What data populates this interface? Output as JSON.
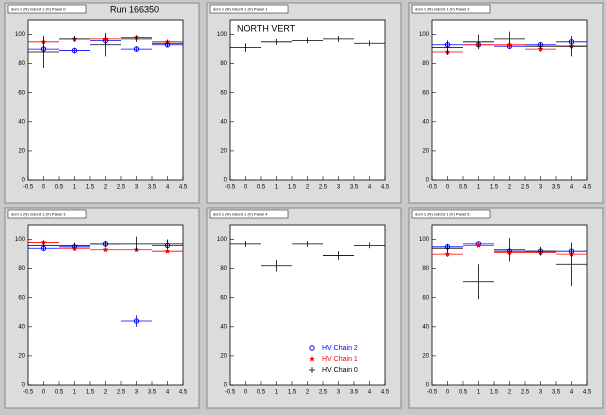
{
  "chart_data": [
    {
      "type": "errorbar",
      "title": "dom 1 (N) Gdord 1 (V) Panel 0",
      "run_label": "Run 166350",
      "x": [
        0,
        1,
        2,
        3,
        4
      ],
      "xerr": 0.5,
      "xlim": [
        -0.5,
        4.5
      ],
      "xticks": [
        -0.5,
        0,
        0.5,
        1,
        1.5,
        2,
        2.5,
        3,
        3.5,
        4,
        4.5
      ],
      "ylim": [
        0,
        110
      ],
      "yticks": [
        0,
        20,
        40,
        60,
        80,
        100
      ],
      "series": [
        {
          "color": "#0000ff",
          "marker": "circle",
          "values": [
            90,
            89,
            96,
            90,
            93
          ],
          "errors": [
            2,
            2,
            3,
            2,
            2
          ]
        },
        {
          "color": "#ff0000",
          "marker": "star",
          "values": [
            95,
            97,
            97,
            98,
            95
          ],
          "errors": [
            2,
            1,
            1,
            1,
            1
          ]
        },
        {
          "color": "#000000",
          "marker": "cross",
          "values": [
            88,
            97,
            93,
            97,
            94
          ],
          "errors": [
            11,
            2,
            8,
            2,
            2
          ]
        }
      ]
    },
    {
      "type": "errorbar",
      "title": "dom 1 (N) Gdord 1 (V) Panel 1",
      "annotation": "NORTH VERT",
      "x": [
        0,
        1,
        2,
        3,
        4
      ],
      "xerr": 0.5,
      "xlim": [
        -0.5,
        4.5
      ],
      "xticks": [
        -0.5,
        0,
        0.5,
        1,
        1.5,
        2,
        2.5,
        3,
        3.5,
        4,
        4.5
      ],
      "ylim": [
        0,
        110
      ],
      "yticks": [
        0,
        20,
        40,
        60,
        80,
        100
      ],
      "series": [
        {
          "color": "#000000",
          "marker": "cross",
          "values": [
            91,
            95,
            96,
            97,
            94
          ],
          "errors": [
            3,
            2,
            2,
            2,
            2
          ]
        }
      ]
    },
    {
      "type": "errorbar",
      "title": "dom 1 (N) Gdord 1 (V) Panel 2",
      "x": [
        0,
        1,
        2,
        3,
        4
      ],
      "xerr": 0.5,
      "xlim": [
        -0.5,
        4.5
      ],
      "xticks": [
        -0.5,
        0,
        0.5,
        1,
        1.5,
        2,
        2.5,
        3,
        3.5,
        4,
        4.5
      ],
      "ylim": [
        0,
        110
      ],
      "yticks": [
        0,
        20,
        40,
        60,
        80,
        100
      ],
      "series": [
        {
          "color": "#0000ff",
          "marker": "circle",
          "values": [
            93,
            93,
            92,
            93,
            95
          ],
          "errors": [
            2,
            2,
            2,
            2,
            2
          ]
        },
        {
          "color": "#ff0000",
          "marker": "star",
          "values": [
            88,
            93,
            93,
            90,
            92
          ],
          "errors": [
            2,
            2,
            2,
            2,
            2
          ]
        },
        {
          "color": "#000000",
          "marker": "cross",
          "values": [
            91,
            95,
            97,
            92,
            92
          ],
          "errors": [
            5,
            5,
            5,
            2,
            7
          ]
        }
      ]
    },
    {
      "type": "errorbar",
      "title": "dom 1 (N) Gdord 1 (V) Panel 3",
      "x": [
        0,
        1,
        2,
        3,
        4
      ],
      "xerr": 0.5,
      "xlim": [
        -0.5,
        4.5
      ],
      "xticks": [
        -0.5,
        0,
        0.5,
        1,
        1.5,
        2,
        2.5,
        3,
        3.5,
        4,
        4.5
      ],
      "ylim": [
        0,
        110
      ],
      "yticks": [
        0,
        20,
        40,
        60,
        80,
        100
      ],
      "series": [
        {
          "color": "#0000ff",
          "marker": "circle",
          "values": [
            94,
            95,
            97,
            44,
            96
          ],
          "errors": [
            2,
            2,
            2,
            4,
            3
          ]
        },
        {
          "color": "#ff0000",
          "marker": "star",
          "values": [
            98,
            94,
            93,
            93,
            92
          ],
          "errors": [
            1,
            2,
            1,
            1,
            1
          ]
        },
        {
          "color": "#000000",
          "marker": "cross",
          "values": [
            96,
            96,
            97,
            97,
            97
          ],
          "errors": [
            2,
            2,
            2,
            5,
            3
          ]
        }
      ]
    },
    {
      "type": "errorbar",
      "title": "dom 1 (N) Gdord 1 (V) Panel 4",
      "x": [
        0,
        1,
        2,
        3,
        4
      ],
      "xerr": 0.5,
      "xlim": [
        -0.5,
        4.5
      ],
      "xticks": [
        -0.5,
        0,
        0.5,
        1,
        1.5,
        2,
        2.5,
        3,
        3.5,
        4,
        4.5
      ],
      "ylim": [
        0,
        110
      ],
      "yticks": [
        0,
        20,
        40,
        60,
        80,
        100
      ],
      "series": [
        {
          "color": "#000000",
          "marker": "cross",
          "values": [
            97,
            82,
            97,
            89,
            96
          ],
          "errors": [
            2,
            4,
            2,
            3,
            2
          ]
        }
      ],
      "legend": [
        {
          "name": "HV Chain 2",
          "color": "#0000ff",
          "marker": "circle"
        },
        {
          "name": "HV Chain 1",
          "color": "#ff0000",
          "marker": "star"
        },
        {
          "name": "HV Chain 0",
          "color": "#000000",
          "marker": "cross"
        }
      ]
    },
    {
      "type": "errorbar",
      "title": "dom 1 (N) Gdord 1 (V) Panel 5",
      "x": [
        0,
        1,
        2,
        3,
        4
      ],
      "xerr": 0.5,
      "xlim": [
        -0.5,
        4.5
      ],
      "xticks": [
        -0.5,
        0,
        0.5,
        1,
        1.5,
        2,
        2.5,
        3,
        3.5,
        4,
        4.5
      ],
      "ylim": [
        0,
        110
      ],
      "yticks": [
        0,
        20,
        40,
        60,
        80,
        100
      ],
      "series": [
        {
          "color": "#0000ff",
          "marker": "circle",
          "values": [
            95,
            97,
            92,
            92,
            92
          ],
          "errors": [
            2,
            1,
            2,
            2,
            2
          ]
        },
        {
          "color": "#ff0000",
          "marker": "star",
          "values": [
            90,
            96,
            91,
            91,
            90
          ],
          "errors": [
            2,
            1,
            2,
            2,
            2
          ]
        },
        {
          "color": "#000000",
          "marker": "cross",
          "values": [
            94,
            71,
            93,
            92,
            83
          ],
          "errors": [
            3,
            12,
            8,
            3,
            15
          ]
        }
      ]
    }
  ]
}
